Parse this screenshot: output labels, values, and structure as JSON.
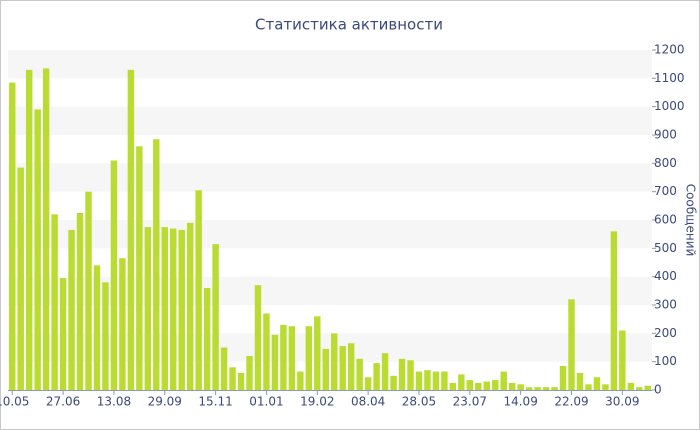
{
  "chart_data": {
    "type": "bar",
    "title": "Статистика активности",
    "y_label": "Сообщений",
    "categories": [
      "10.05",
      null,
      null,
      null,
      null,
      null,
      "27.06",
      null,
      null,
      null,
      null,
      null,
      "13.08",
      null,
      null,
      null,
      null,
      null,
      "29.09",
      null,
      null,
      null,
      null,
      null,
      "15.11",
      null,
      null,
      null,
      null,
      null,
      "01.01",
      null,
      null,
      null,
      null,
      null,
      "19.02",
      null,
      null,
      null,
      null,
      null,
      "08.04",
      null,
      null,
      null,
      null,
      null,
      "28.05",
      null,
      null,
      null,
      null,
      null,
      "23.07",
      null,
      null,
      null,
      null,
      null,
      "14.09",
      null,
      null,
      null,
      null,
      null,
      "22.09",
      null,
      null,
      null,
      null,
      null,
      "30.09",
      null,
      null,
      null
    ],
    "values": [
      1085,
      785,
      1130,
      990,
      1135,
      620,
      395,
      565,
      625,
      700,
      440,
      380,
      810,
      465,
      1130,
      860,
      575,
      885,
      575,
      570,
      565,
      590,
      705,
      360,
      515,
      150,
      80,
      60,
      120,
      370,
      270,
      195,
      230,
      225,
      65,
      225,
      260,
      145,
      200,
      155,
      165,
      110,
      45,
      95,
      130,
      50,
      110,
      105,
      65,
      70,
      65,
      65,
      25,
      55,
      35,
      25,
      30,
      35,
      65,
      25,
      20,
      10,
      10,
      10,
      10,
      85,
      320,
      60,
      20,
      45,
      20,
      560,
      210,
      25,
      10,
      15
    ],
    "color": "#badc32",
    "ylim": [
      0,
      1200
    ],
    "yticks": [
      0,
      100,
      200,
      300,
      400,
      500,
      600,
      700,
      800,
      900,
      1000,
      1100,
      1200
    ],
    "bands": true
  }
}
